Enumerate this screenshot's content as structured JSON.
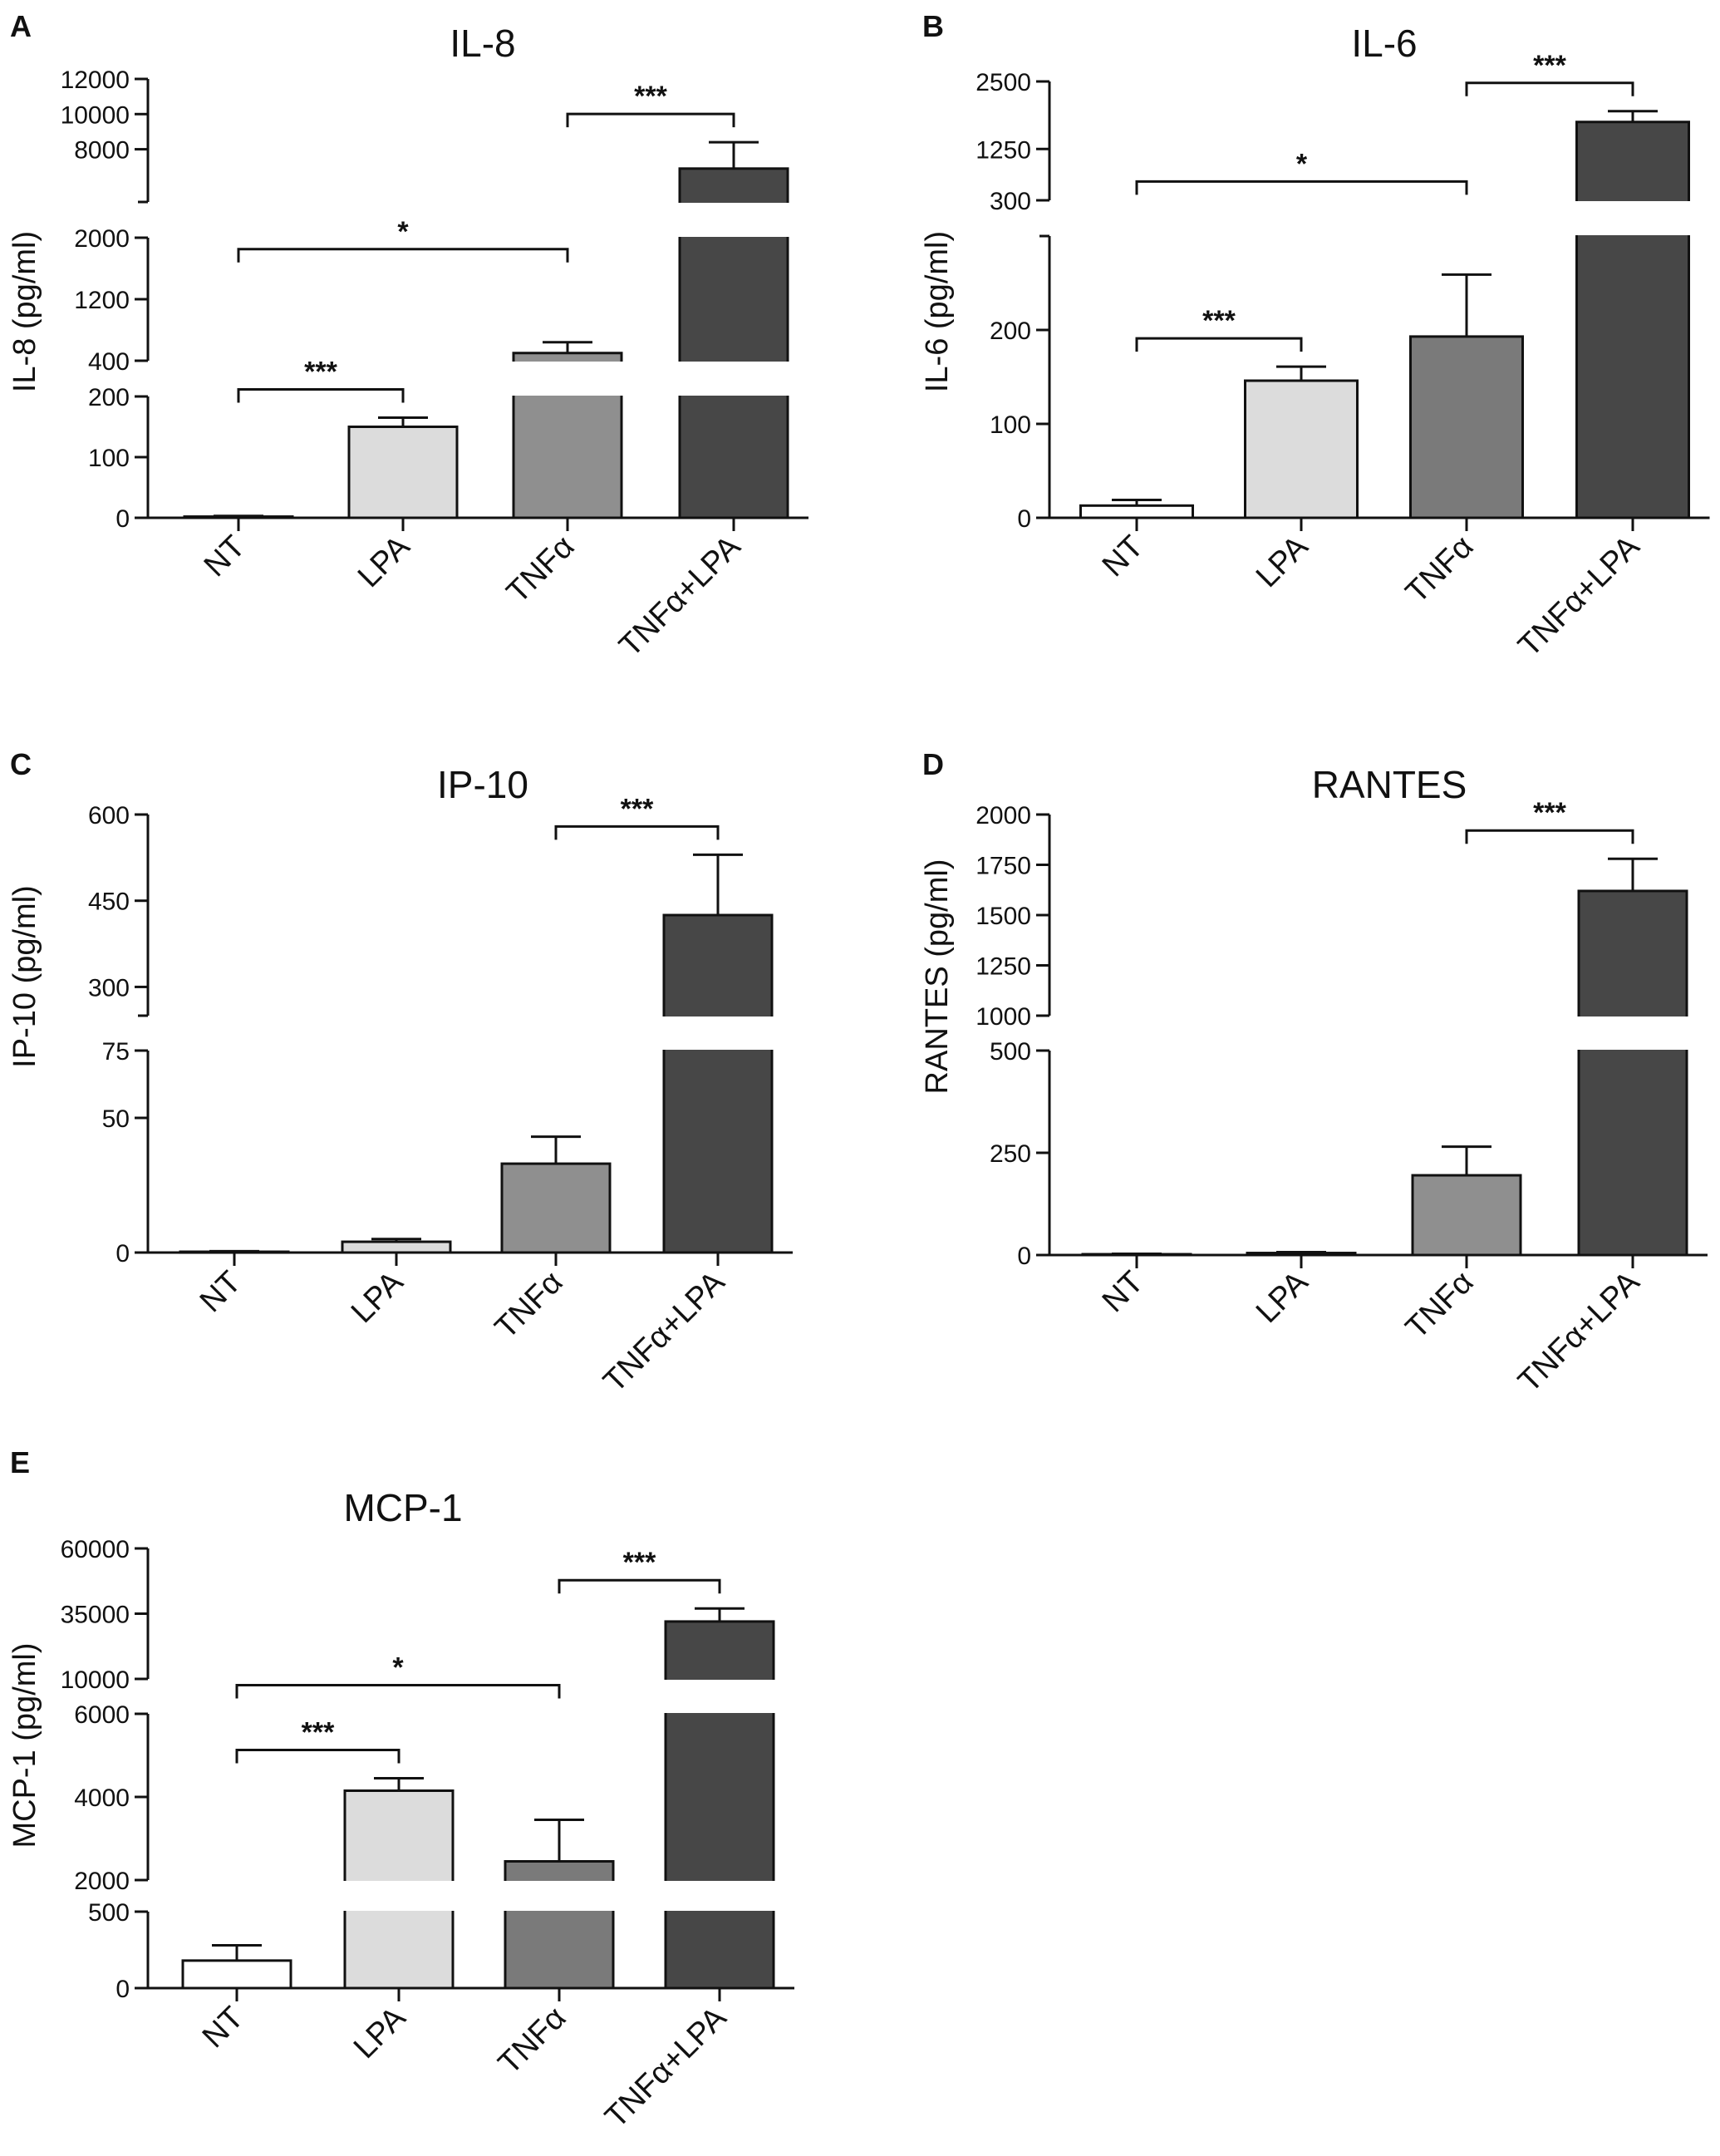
{
  "chart_data": [
    {
      "panel": "A",
      "type": "bar",
      "title": "IL-8",
      "ylabel": "IL-8 (pg/ml)",
      "xlabel": "",
      "categories": [
        "NT",
        "LPA",
        "TNFα",
        "TNFα+LPA"
      ],
      "values": [
        2,
        150,
        500,
        6900
      ],
      "errors": [
        1,
        15,
        140,
        1500
      ],
      "colors": [
        "#ffffff",
        "#dcdcdc",
        "#8f8f8f",
        "#474747"
      ],
      "y_segments": [
        {
          "range": [
            0,
            200
          ],
          "ticks": [
            0,
            100,
            200
          ]
        },
        {
          "range": [
            400,
            2000
          ],
          "ticks": [
            400,
            1200,
            2000
          ]
        },
        {
          "range": [
            5000,
            12000
          ],
          "ticks": [
            8000,
            10000,
            12000
          ]
        }
      ],
      "significance": [
        {
          "from": 0,
          "to": 1,
          "label": "***"
        },
        {
          "from": 0,
          "to": 2,
          "label": "*"
        },
        {
          "from": 2,
          "to": 3,
          "label": "***"
        }
      ]
    },
    {
      "panel": "B",
      "type": "bar",
      "title": "IL-6",
      "ylabel": "IL-6 (pg/ml)",
      "xlabel": "",
      "categories": [
        "NT",
        "LPA",
        "TNFα",
        "TNFα+LPA"
      ],
      "values": [
        13,
        146,
        193,
        1750
      ],
      "errors": [
        6,
        15,
        66,
        200
      ],
      "colors": [
        "#ffffff",
        "#dcdcdc",
        "#7a7a7a",
        "#474747"
      ],
      "y_segments": [
        {
          "range": [
            0,
            300
          ],
          "ticks": [
            0,
            100,
            200,
            300
          ]
        },
        {
          "range": [
            300,
            2500
          ],
          "ticks": [
            1250,
            2500
          ]
        }
      ],
      "significance": [
        {
          "from": 0,
          "to": 1,
          "label": "***"
        },
        {
          "from": 0,
          "to": 2,
          "label": "*"
        },
        {
          "from": 2,
          "to": 3,
          "label": "***"
        }
      ]
    },
    {
      "panel": "C",
      "type": "bar",
      "title": "IP-10",
      "ylabel": "IP-10 (pg/ml)",
      "xlabel": "",
      "categories": [
        "NT",
        "LPA",
        "TNFα",
        "TNFα+LPA"
      ],
      "values": [
        0.3,
        4,
        33,
        425
      ],
      "errors": [
        0.2,
        1,
        10,
        105
      ],
      "colors": [
        "#ffffff",
        "#dcdcdc",
        "#8f8f8f",
        "#474747"
      ],
      "y_segments": [
        {
          "range": [
            0,
            75
          ],
          "ticks": [
            0,
            50,
            75
          ]
        },
        {
          "range": [
            250,
            600
          ],
          "ticks": [
            300,
            450,
            600
          ]
        }
      ],
      "significance": [
        {
          "from": 2,
          "to": 3,
          "label": "***"
        }
      ]
    },
    {
      "panel": "D",
      "type": "bar",
      "title": "RANTES",
      "ylabel": "RANTES (pg/ml)",
      "xlabel": "",
      "categories": [
        "NT",
        "LPA",
        "TNFα",
        "TNFα+LPA"
      ],
      "values": [
        2,
        5,
        195,
        1620
      ],
      "errors": [
        1,
        2,
        70,
        160
      ],
      "colors": [
        "#ffffff",
        "#dcdcdc",
        "#8f8f8f",
        "#474747"
      ],
      "y_segments": [
        {
          "range": [
            0,
            500
          ],
          "ticks": [
            0,
            250,
            500
          ]
        },
        {
          "range": [
            1000,
            2000
          ],
          "ticks": [
            1000,
            1250,
            1500,
            1750,
            2000
          ]
        }
      ],
      "significance": [
        {
          "from": 2,
          "to": 3,
          "label": "***"
        }
      ]
    },
    {
      "panel": "E",
      "type": "bar",
      "title": "MCP-1",
      "ylabel": "MCP-1 (pg/ml)",
      "xlabel": "",
      "categories": [
        "NT",
        "LPA",
        "TNFα",
        "TNFα+LPA"
      ],
      "values": [
        180,
        4150,
        2450,
        32000
      ],
      "errors": [
        100,
        300,
        1000,
        5000
      ],
      "colors": [
        "#ffffff",
        "#dcdcdc",
        "#7a7a7a",
        "#474747"
      ],
      "y_segments": [
        {
          "range": [
            0,
            500
          ],
          "ticks": [
            0,
            500
          ]
        },
        {
          "range": [
            2000,
            6000
          ],
          "ticks": [
            2000,
            4000,
            6000
          ]
        },
        {
          "range": [
            10000,
            60000
          ],
          "ticks": [
            10000,
            35000,
            60000
          ]
        }
      ],
      "significance": [
        {
          "from": 0,
          "to": 1,
          "label": "***"
        },
        {
          "from": 0,
          "to": 2,
          "label": "*"
        },
        {
          "from": 2,
          "to": 3,
          "label": "***"
        }
      ]
    }
  ]
}
